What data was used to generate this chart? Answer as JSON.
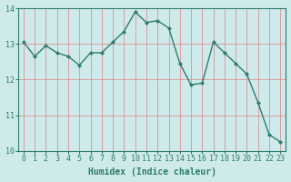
{
  "x": [
    0,
    1,
    2,
    3,
    4,
    5,
    6,
    7,
    8,
    9,
    10,
    11,
    12,
    13,
    14,
    15,
    16,
    17,
    18,
    19,
    20,
    21,
    22,
    23
  ],
  "y": [
    13.05,
    12.65,
    12.95,
    12.75,
    12.65,
    12.4,
    12.75,
    12.75,
    13.05,
    13.35,
    13.9,
    13.6,
    13.65,
    13.45,
    12.45,
    11.85,
    11.9,
    13.05,
    12.75,
    12.45,
    12.15,
    11.35,
    10.45,
    10.25
  ],
  "line_color": "#2d7d6e",
  "marker": "D",
  "marker_size": 2,
  "bg_color": "#ceeaea",
  "grid_color": "#b0c8c8",
  "xlabel": "Humidex (Indice chaleur)",
  "ylabel": "",
  "xlim": [
    -0.5,
    23.5
  ],
  "ylim": [
    10,
    14
  ],
  "yticks": [
    10,
    11,
    12,
    13,
    14
  ],
  "xticks": [
    0,
    1,
    2,
    3,
    4,
    5,
    6,
    7,
    8,
    9,
    10,
    11,
    12,
    13,
    14,
    15,
    16,
    17,
    18,
    19,
    20,
    21,
    22,
    23
  ],
  "tick_fontsize": 6,
  "xlabel_fontsize": 7,
  "line_width": 1.0,
  "title": ""
}
